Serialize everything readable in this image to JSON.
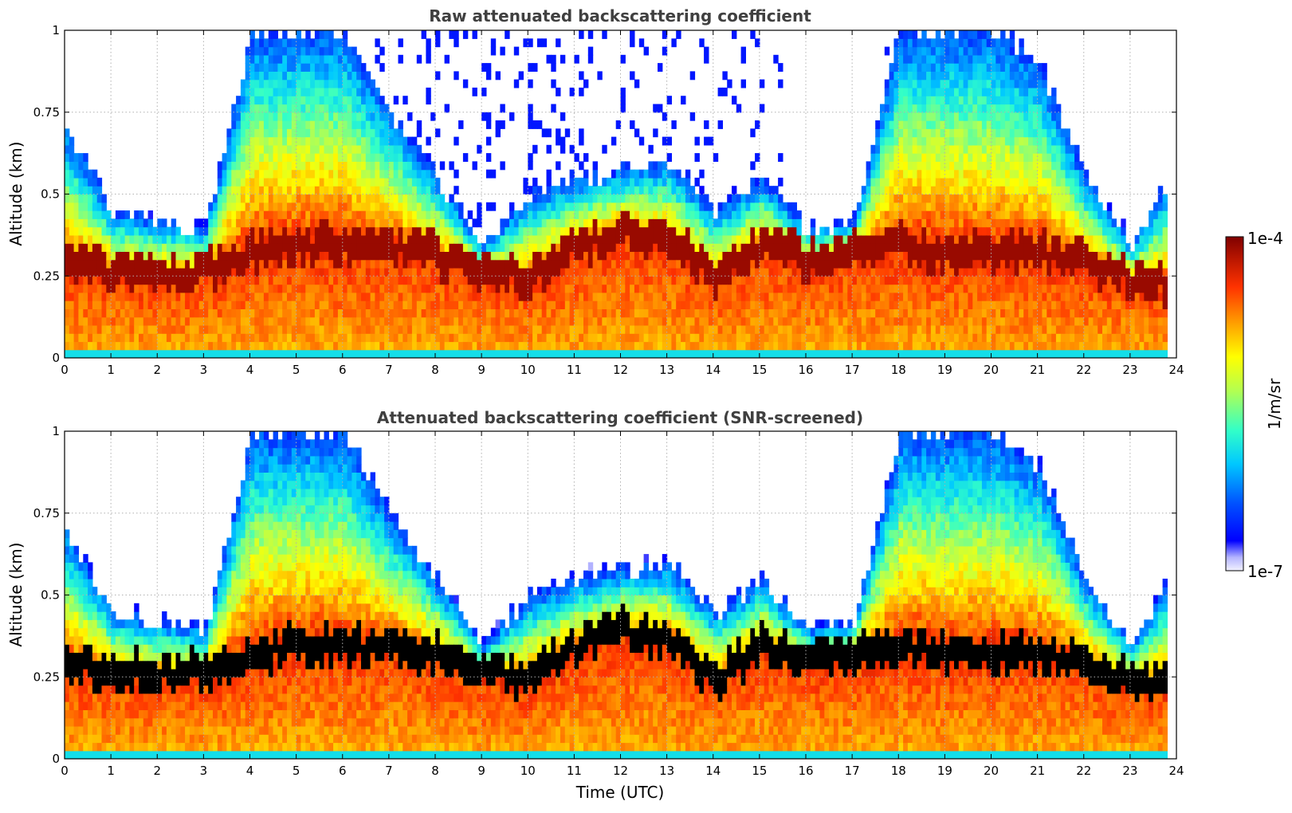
{
  "chart_data": [
    {
      "type": "heatmap",
      "title": "Raw attenuated backscattering coefficient",
      "xlabel": "",
      "ylabel": "Altitude (km)",
      "xlim": [
        0,
        24
      ],
      "ylim": [
        0,
        1
      ],
      "xticks": [
        "0",
        "1",
        "2",
        "3",
        "4",
        "5",
        "6",
        "7",
        "8",
        "9",
        "10",
        "11",
        "12",
        "13",
        "14",
        "15",
        "16",
        "17",
        "18",
        "19",
        "20",
        "21",
        "22",
        "23",
        "24"
      ],
      "yticks": [
        "0",
        "0.25",
        "0.5",
        "0.75",
        "1"
      ],
      "grid": true,
      "colormap": "jet (log scale)",
      "cloud_base_km": [
        [
          0,
          0.25
        ],
        [
          1,
          0.22
        ],
        [
          2,
          0.22
        ],
        [
          3,
          0.22
        ],
        [
          4,
          0.28
        ],
        [
          5,
          0.3
        ],
        [
          6,
          0.3
        ],
        [
          7,
          0.3
        ],
        [
          8,
          0.27
        ],
        [
          9,
          0.22
        ],
        [
          10,
          0.2
        ],
        [
          11,
          0.3
        ],
        [
          12,
          0.35
        ],
        [
          13,
          0.32
        ],
        [
          14,
          0.2
        ],
        [
          15,
          0.3
        ],
        [
          16,
          0.26
        ],
        [
          17,
          0.28
        ],
        [
          18,
          0.3
        ],
        [
          19,
          0.28
        ],
        [
          20,
          0.28
        ],
        [
          21,
          0.28
        ],
        [
          22,
          0.25
        ],
        [
          23,
          0.2
        ],
        [
          23.8,
          0.18
        ]
      ],
      "signal_top_km": [
        [
          0,
          0.7
        ],
        [
          1,
          0.45
        ],
        [
          2,
          0.42
        ],
        [
          3,
          0.4
        ],
        [
          4,
          1.0
        ],
        [
          5,
          1.0
        ],
        [
          6,
          1.0
        ],
        [
          7,
          0.75
        ],
        [
          8,
          0.55
        ],
        [
          9,
          0.35
        ],
        [
          10,
          0.5
        ],
        [
          11,
          0.55
        ],
        [
          12,
          0.58
        ],
        [
          13,
          0.6
        ],
        [
          14,
          0.45
        ],
        [
          15,
          0.55
        ],
        [
          16,
          0.4
        ],
        [
          17,
          0.42
        ],
        [
          18,
          1.0
        ],
        [
          19,
          1.0
        ],
        [
          20,
          1.0
        ],
        [
          21,
          0.9
        ],
        [
          22,
          0.55
        ],
        [
          23,
          0.35
        ],
        [
          23.8,
          0.55
        ]
      ]
    },
    {
      "type": "heatmap",
      "title": "Attenuated backscattering coefficient (SNR-screened)",
      "xlabel": "Time (UTC)",
      "ylabel": "Altitude (km)",
      "xlim": [
        0,
        24
      ],
      "ylim": [
        0,
        1
      ],
      "xticks": [
        "0",
        "1",
        "2",
        "3",
        "4",
        "5",
        "6",
        "7",
        "8",
        "9",
        "10",
        "11",
        "12",
        "13",
        "14",
        "15",
        "16",
        "17",
        "18",
        "19",
        "20",
        "21",
        "22",
        "23",
        "24"
      ],
      "yticks": [
        "0",
        "0.25",
        "0.5",
        "0.75",
        "1"
      ],
      "grid": true,
      "colormap": "jet (log scale)",
      "screened_color": "#000000"
    }
  ],
  "colorbar": {
    "max_label": "1e-4",
    "min_label": "1e-7",
    "label": "1/m/sr",
    "scale": "log"
  }
}
